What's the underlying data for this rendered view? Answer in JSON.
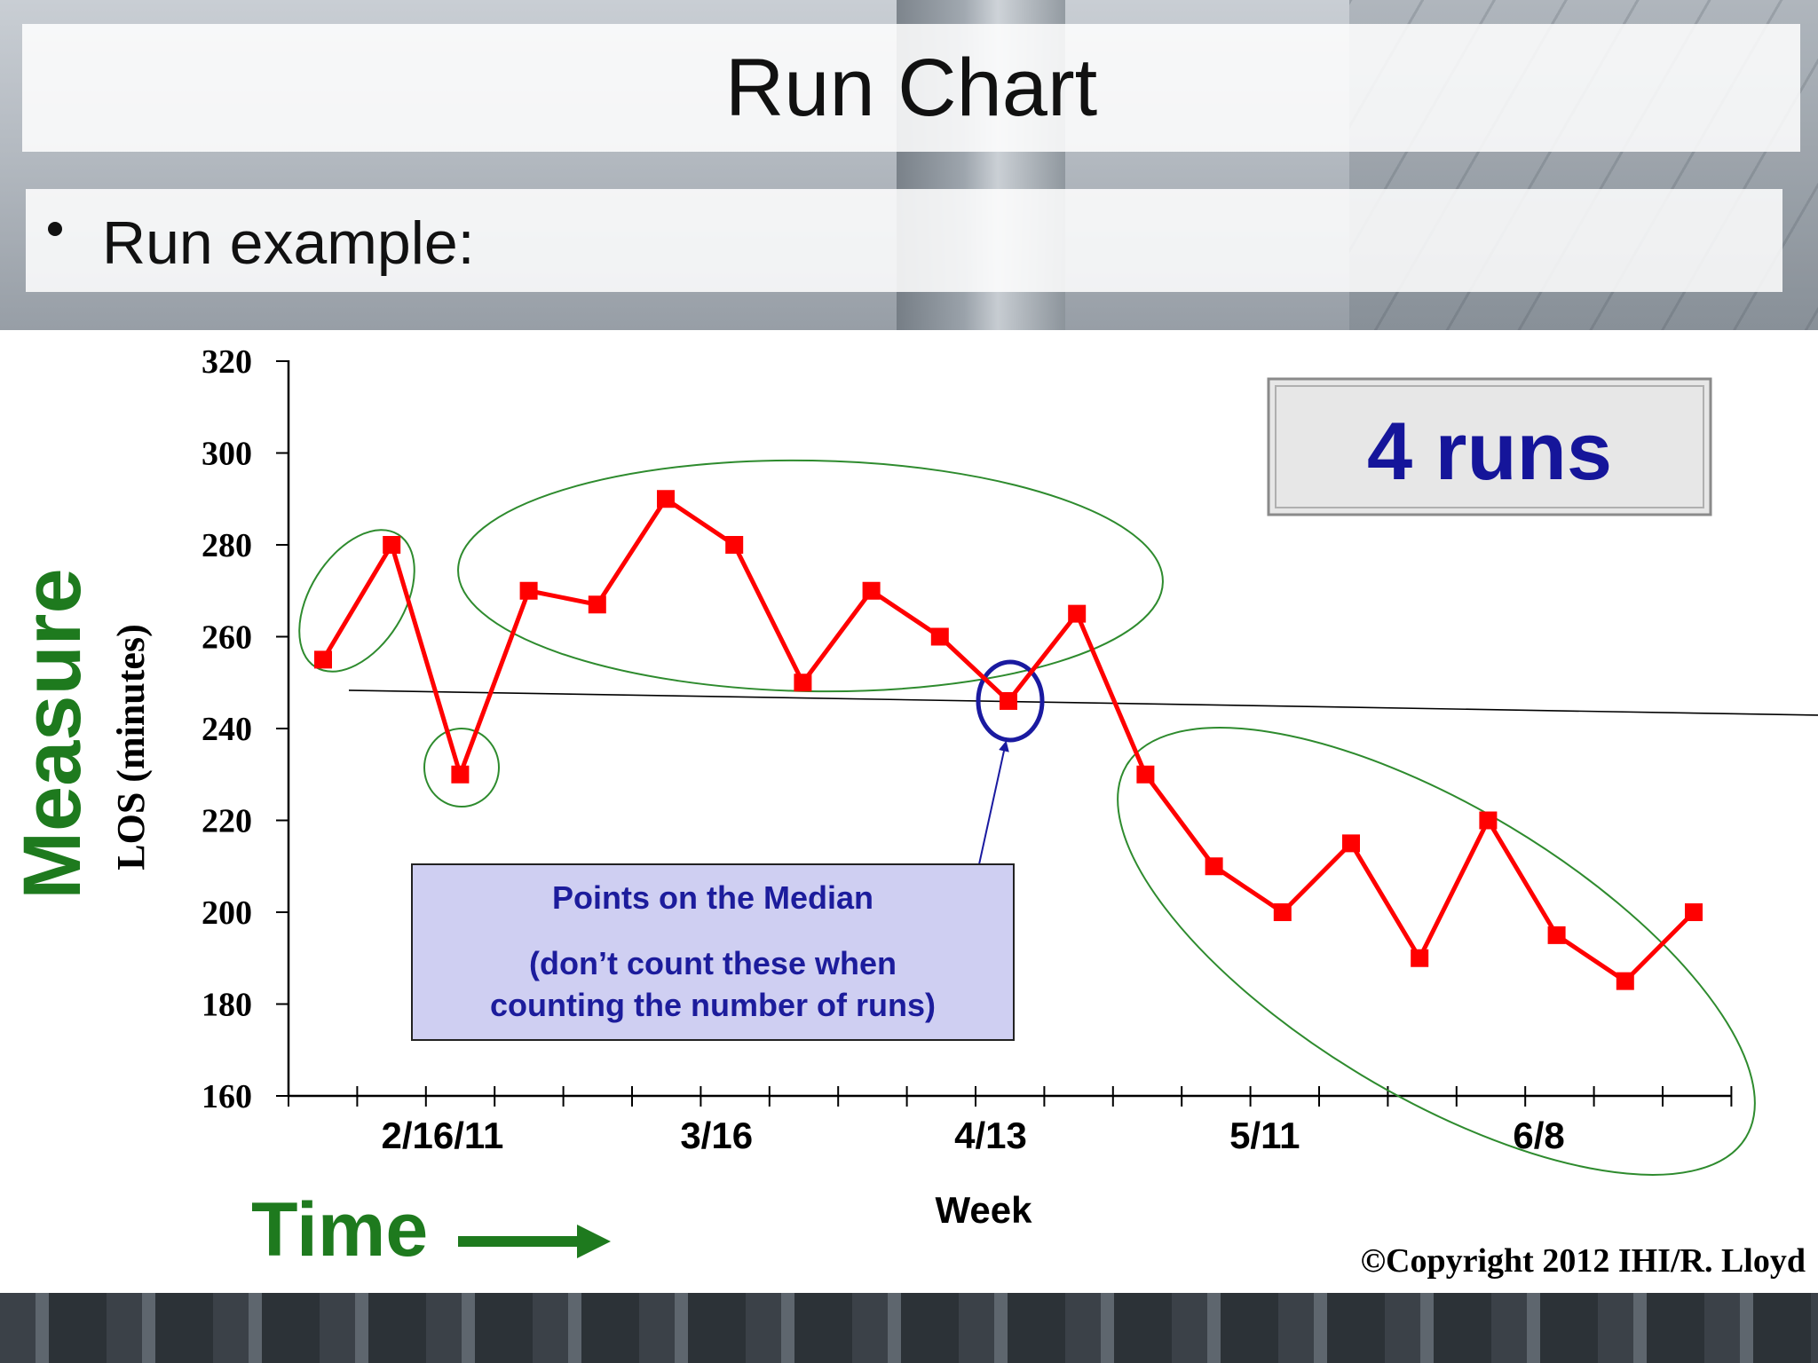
{
  "slide": {
    "title": "Run Chart",
    "bullet": "Run example:",
    "copyright": "©Copyright  2012  IHI/R. Lloyd"
  },
  "chart_data": {
    "type": "line",
    "ylabel": "LOS (minutes)",
    "xlabel": "Week",
    "side_label": "Measure",
    "time_label": "Time",
    "ylim": [
      160,
      320
    ],
    "yticks": [
      160,
      180,
      200,
      220,
      240,
      260,
      280,
      300,
      320
    ],
    "x_tick_labels": [
      {
        "label": "2/16/11",
        "index": 2
      },
      {
        "label": "3/16",
        "index": 6
      },
      {
        "label": "4/13",
        "index": 10
      },
      {
        "label": "5/11",
        "index": 14
      },
      {
        "label": "6/8",
        "index": 18
      }
    ],
    "values": [
      255,
      280,
      230,
      270,
      267,
      290,
      280,
      250,
      270,
      260,
      246,
      265,
      230,
      210,
      200,
      215,
      190,
      220,
      195,
      185,
      200
    ],
    "median": 246,
    "runs_label": "4 runs",
    "median_callout": {
      "line1": "Points on the Median",
      "line2": "(don’t count these when",
      "line3": "counting the number of runs)"
    },
    "colors": {
      "series": "#ff0000",
      "run_ellipse": "#2e8b2e",
      "median_circle": "#1a1aa0",
      "callout_text": "#1c1c9c",
      "callout_fill": "#cfcff2",
      "axis_label_green": "#1e7a1e",
      "runs_text": "#15159a"
    }
  }
}
